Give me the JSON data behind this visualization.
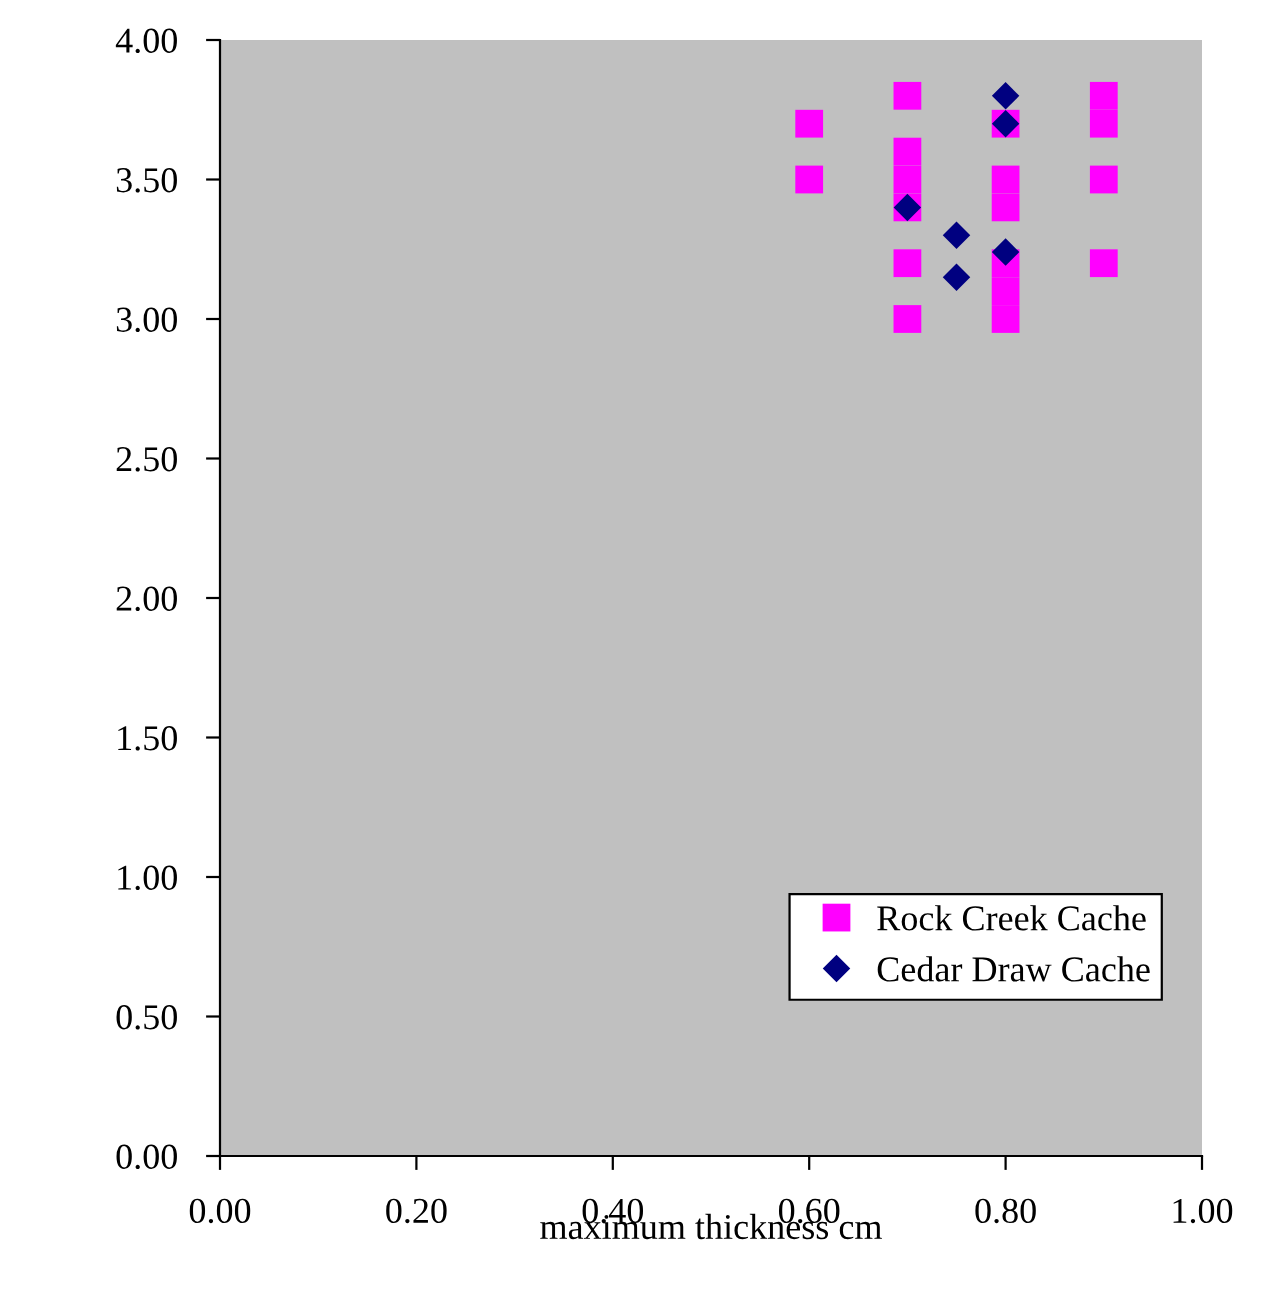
{
  "chart_data": {
    "type": "scatter",
    "xlabel": "maximum thickness cm",
    "xlim": [
      0,
      1
    ],
    "xticks": [
      {
        "value": 0,
        "label": "0.00"
      },
      {
        "value": 0.2,
        "label": "0.20"
      },
      {
        "value": 0.4,
        "label": "0.40"
      },
      {
        "value": 0.6,
        "label": "0.60"
      },
      {
        "value": 0.8,
        "label": "0.80"
      },
      {
        "value": 1,
        "label": "1.00"
      }
    ],
    "ylim": [
      0,
      4
    ],
    "yticks": [
      {
        "value": 0,
        "label": "0.00"
      },
      {
        "value": 0.5,
        "label": "0.50"
      },
      {
        "value": 1,
        "label": "1.00"
      },
      {
        "value": 1.5,
        "label": "1.50"
      },
      {
        "value": 2,
        "label": "2.00"
      },
      {
        "value": 2.5,
        "label": "2.50"
      },
      {
        "value": 3,
        "label": "3.00"
      },
      {
        "value": 3.5,
        "label": "3.50"
      },
      {
        "value": 4,
        "label": "4.00"
      }
    ],
    "grid": false,
    "legend": "bottom right",
    "series": [
      {
        "name": "Rock Creek Cache",
        "color": "#ff00ff",
        "marker": "square",
        "x": [
          0.6,
          0.6,
          0.7,
          0.7,
          0.7,
          0.7,
          0.7,
          0.7,
          0.8,
          0.8,
          0.8,
          0.8,
          0.8,
          0.8,
          0.9,
          0.9,
          0.9,
          0.9
        ],
        "values": [
          3.7,
          3.5,
          3.8,
          3.6,
          3.5,
          3.4,
          3.2,
          3.0,
          3.7,
          3.5,
          3.4,
          3.2,
          3.1,
          3.0,
          3.8,
          3.7,
          3.5,
          3.2
        ]
      },
      {
        "name": "Cedar Draw Cache",
        "color": "#000080",
        "marker": "diamond",
        "x": [
          0.7,
          0.75,
          0.75,
          0.8,
          0.8,
          0.8
        ],
        "values": [
          3.4,
          3.3,
          3.15,
          3.8,
          3.7,
          3.24
        ]
      }
    ]
  }
}
